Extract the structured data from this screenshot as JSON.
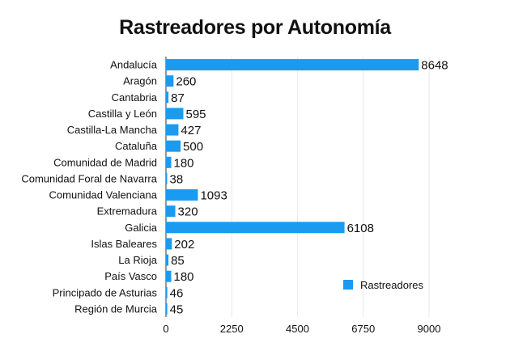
{
  "chart_data": {
    "type": "bar",
    "orientation": "horizontal",
    "title": "Rastreadores por Autonomía",
    "xlabel": "",
    "ylabel": "",
    "xlim": [
      0,
      9000
    ],
    "xticks": [
      "0",
      "2250",
      "4500",
      "6750",
      "9000"
    ],
    "xtick_values": [
      0,
      2250,
      4500,
      6750,
      9000
    ],
    "grid": true,
    "legend_position": "bottom-right",
    "categories": [
      "Andalucía",
      "Aragón",
      "Cantabria",
      "Castilla y León",
      "Castilla-La Mancha",
      "Cataluña",
      "Comunidad de Madrid",
      "Comunidad Foral de Navarra",
      "Comunidad Valenciana",
      "Extremadura",
      "Galicia",
      "Islas Baleares",
      "La Rioja",
      "País Vasco",
      "Principado de Asturias",
      "Región de Murcia"
    ],
    "series": [
      {
        "name": "Rastreadores",
        "color": "#1a9bf0",
        "values": [
          8648,
          260,
          87,
          595,
          427,
          500,
          180,
          38,
          1093,
          320,
          6108,
          202,
          85,
          180,
          46,
          45
        ]
      }
    ]
  }
}
